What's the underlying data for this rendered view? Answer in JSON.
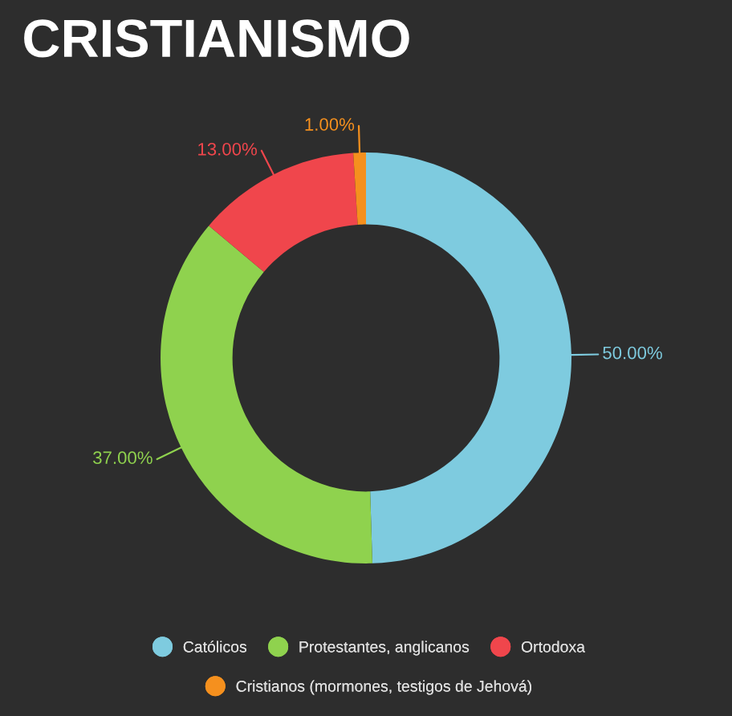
{
  "chart_data": {
    "type": "donut",
    "title": "CRISTIANISMO",
    "categories": [
      "Católicos",
      "Protestantes, anglicanos",
      "Ortodoxa",
      "Cristianos (mormones, testigos de Jehová)"
    ],
    "values": [
      50,
      37,
      13,
      1
    ],
    "value_labels": [
      "50.00%",
      "37.00%",
      "13.00%",
      "1.00%"
    ],
    "colors": [
      "#7ecbdf",
      "#8fd24e",
      "#f0464c",
      "#f5901e"
    ],
    "legend": "bottom"
  }
}
